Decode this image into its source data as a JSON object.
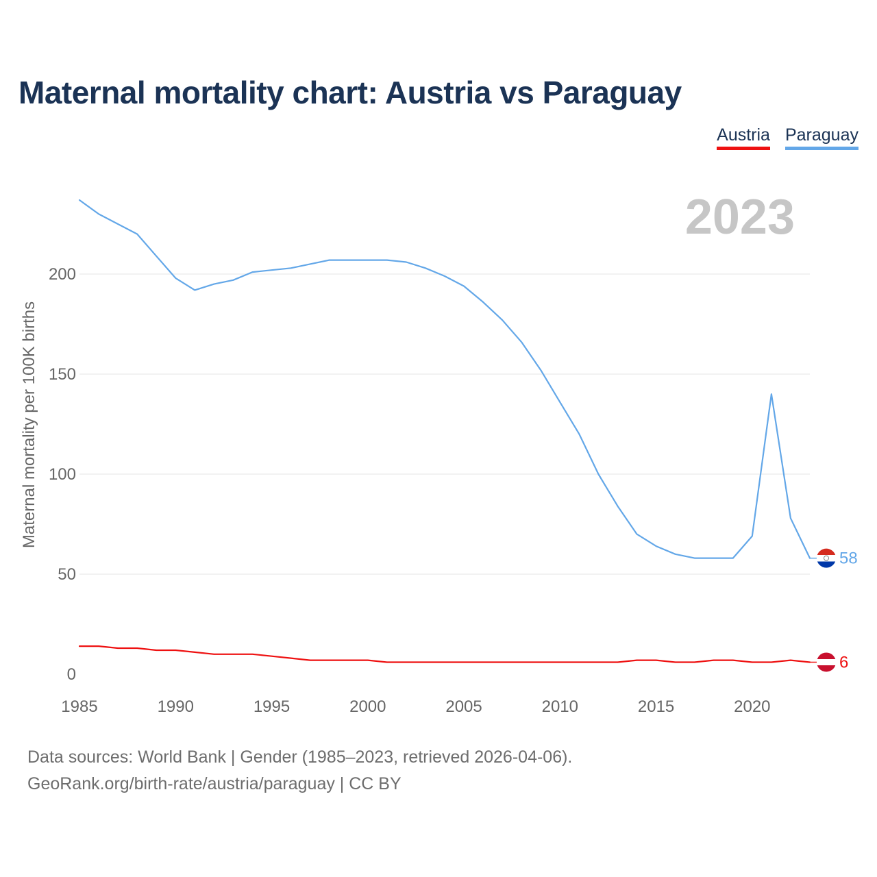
{
  "title": "Maternal mortality chart: Austria vs Paraguay",
  "year_label": "2023",
  "colors": {
    "title": "#1b3355",
    "austria": "#ee1111",
    "paraguay": "#63a7e8",
    "grid": "#e6e6e6",
    "tick": "#666666",
    "year": "#c6c6c6"
  },
  "footer": {
    "line1": "Data sources: World Bank | Gender (1985–2023, retrieved 2026-04-06).",
    "line2": "GeoRank.org/birth-rate/austria/paraguay | CC BY"
  },
  "chart_data": {
    "type": "line",
    "title": "Maternal mortality chart: Austria vs Paraguay",
    "xlabel": "",
    "ylabel": "Maternal mortality per 100K births",
    "xlim": [
      1985,
      2023
    ],
    "ylim": [
      0,
      237
    ],
    "x_ticks": [
      1985,
      1990,
      1995,
      2000,
      2005,
      2010,
      2015,
      2020
    ],
    "y_ticks": [
      0,
      50,
      100,
      150,
      200
    ],
    "grid": true,
    "legend_position": "top-right",
    "x": [
      1985,
      1986,
      1987,
      1988,
      1989,
      1990,
      1991,
      1992,
      1993,
      1994,
      1995,
      1996,
      1997,
      1998,
      1999,
      2000,
      2001,
      2002,
      2003,
      2004,
      2005,
      2006,
      2007,
      2008,
      2009,
      2010,
      2011,
      2012,
      2013,
      2014,
      2015,
      2016,
      2017,
      2018,
      2019,
      2020,
      2021,
      2022,
      2023
    ],
    "series": [
      {
        "name": "Austria",
        "color": "#ee1111",
        "flag": "austria",
        "end_label": "6",
        "values": [
          14,
          14,
          13,
          13,
          12,
          12,
          11,
          10,
          10,
          10,
          9,
          8,
          7,
          7,
          7,
          7,
          6,
          6,
          6,
          6,
          6,
          6,
          6,
          6,
          6,
          6,
          6,
          6,
          6,
          7,
          7,
          6,
          6,
          7,
          7,
          6,
          6,
          7,
          6
        ]
      },
      {
        "name": "Paraguay",
        "color": "#63a7e8",
        "flag": "paraguay",
        "end_label": "58",
        "values": [
          237,
          230,
          225,
          220,
          209,
          198,
          192,
          195,
          197,
          201,
          202,
          203,
          205,
          207,
          207,
          207,
          207,
          206,
          203,
          199,
          194,
          186,
          177,
          166,
          152,
          136,
          120,
          100,
          84,
          70,
          64,
          60,
          58,
          58,
          58,
          69,
          140,
          78,
          58
        ]
      }
    ]
  }
}
